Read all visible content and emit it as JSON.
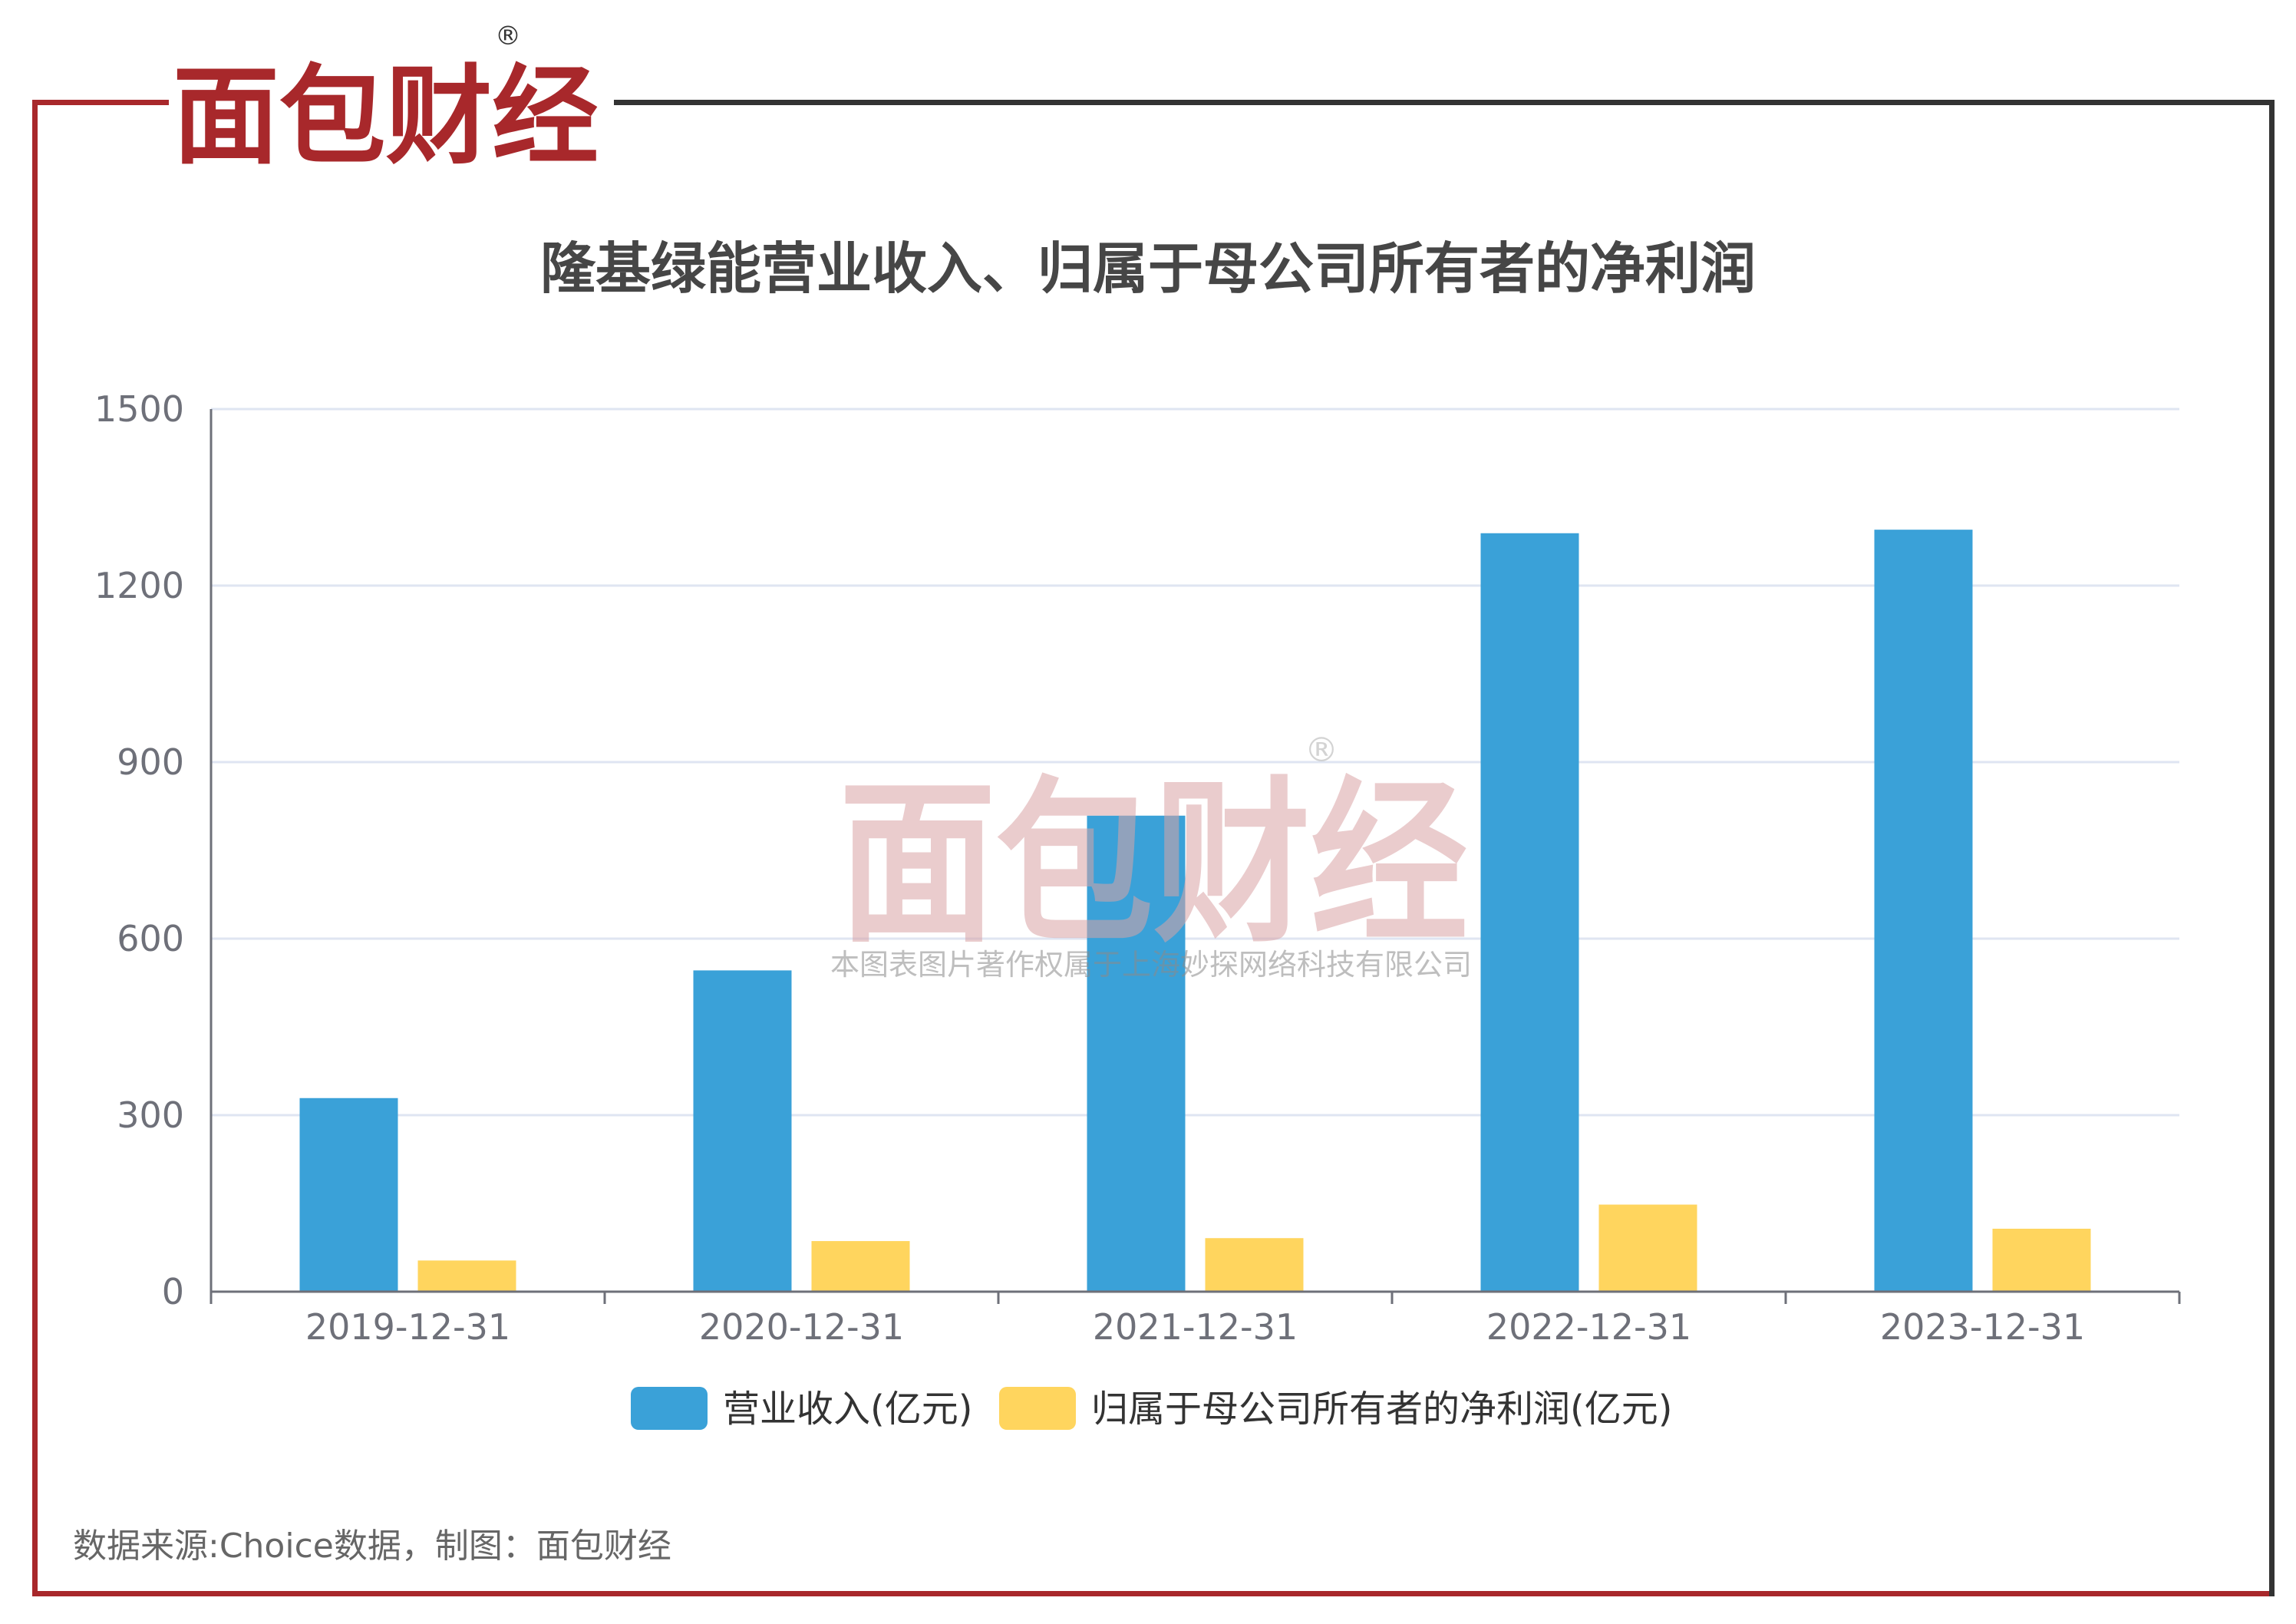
{
  "brand": {
    "logo_text": "面包财经",
    "registered_mark": "®",
    "watermark_text": "面包财经",
    "watermark_caption": "本图表图片著作权属于上海妙探网络科技有限公司"
  },
  "colors": {
    "brand_red": "#a8282b",
    "frame_dark": "#333333",
    "revenue": "#3aa1d8",
    "net_profit": "#ffd55e",
    "grid": "#dfe5f2",
    "axis": "#6e7079"
  },
  "chart_data": {
    "type": "bar",
    "title": "隆基绿能营业收入、归属于母公司所有者的净利润",
    "categories": [
      "2019-12-31",
      "2020-12-31",
      "2021-12-31",
      "2022-12-31",
      "2023-12-31"
    ],
    "series": [
      {
        "name": "营业收入(亿元)",
        "values": [
          329,
          546,
          809,
          1289,
          1295
        ]
      },
      {
        "name": "归属于母公司所有者的净利润(亿元)",
        "values": [
          53,
          86,
          91,
          148,
          107
        ]
      }
    ],
    "ylim": [
      0,
      1500
    ],
    "yticks": [
      0,
      300,
      600,
      900,
      1200,
      1500
    ],
    "xlabel": "",
    "ylabel": "",
    "grid": true,
    "legend": "bottom-center"
  },
  "footer": {
    "source": "数据来源:Choice数据，制图：面包财经"
  }
}
